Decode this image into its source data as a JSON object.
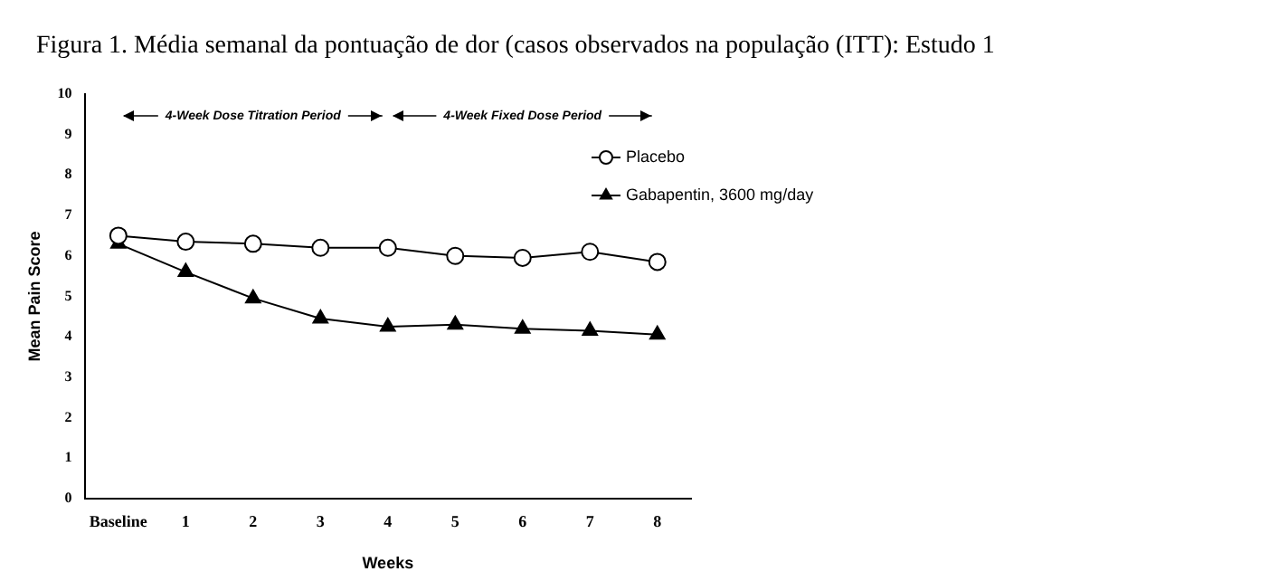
{
  "chart_data": {
    "type": "line",
    "title": "Figura 1. Média semanal da pontuação de dor (casos observados na população (ITT): Estudo 1",
    "xlabel": "Weeks",
    "ylabel": "Mean Pain Score",
    "categories": [
      "Baseline",
      "1",
      "2",
      "3",
      "4",
      "5",
      "6",
      "7",
      "8"
    ],
    "series": [
      {
        "name": "Placebo",
        "color": "#000000",
        "marker": "circle",
        "values": [
          6.5,
          6.35,
          6.3,
          6.2,
          6.2,
          6.0,
          5.95,
          6.1,
          5.85
        ]
      },
      {
        "name": "Gabapentin, 3600 mg/day",
        "color": "#000000",
        "marker": "triangle",
        "values": [
          6.3,
          5.6,
          4.95,
          4.45,
          4.25,
          4.3,
          4.2,
          4.15,
          4.05
        ]
      }
    ],
    "ylim": [
      0,
      10
    ],
    "yticks": [
      0,
      1,
      2,
      3,
      4,
      5,
      6,
      7,
      8,
      9,
      10
    ],
    "grid": false,
    "legend": "top right",
    "line_style": "solid",
    "annotations": [
      "4-Week Dose Titration Period",
      "4-Week Fixed Dose Period"
    ]
  }
}
